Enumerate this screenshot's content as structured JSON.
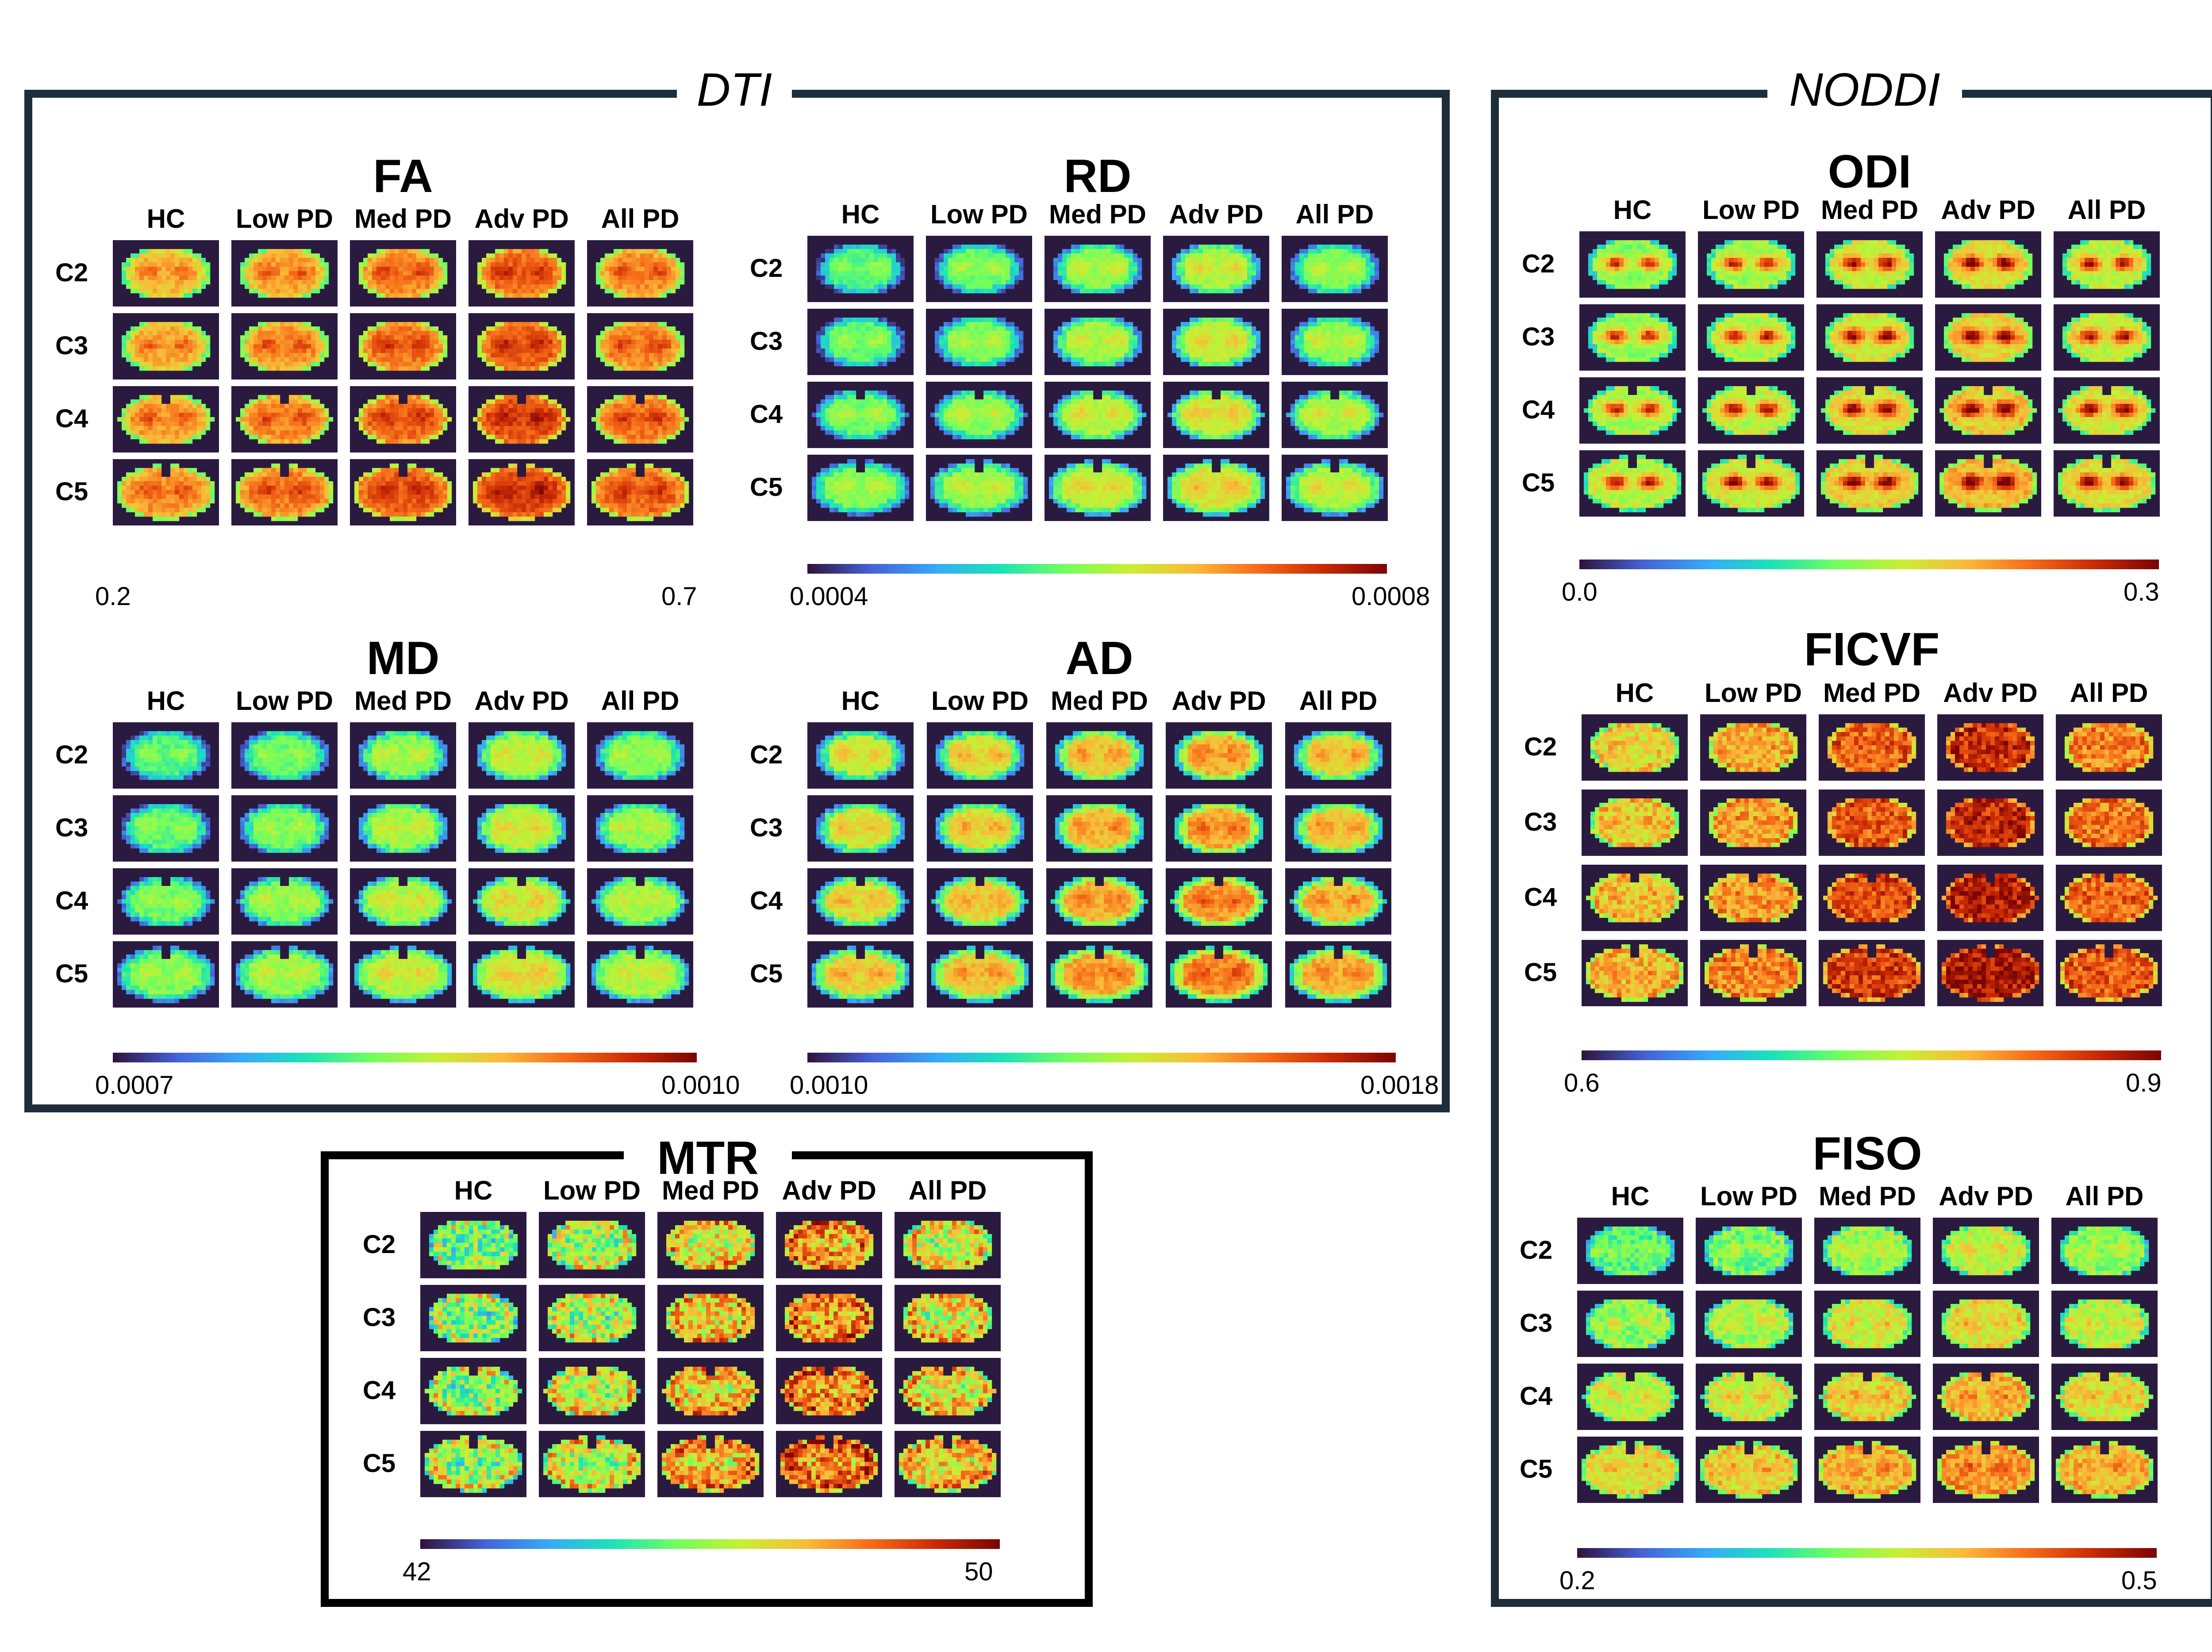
{
  "groups": {
    "dti": "DTI",
    "noddi": "NODDI",
    "mtr": "MTR"
  },
  "columns": [
    "HC",
    "Low PD",
    "Med PD",
    "Adv PD",
    "All PD"
  ],
  "rows": [
    "C2",
    "C3",
    "C4",
    "C5"
  ],
  "panels": [
    {
      "title": "FA",
      "min": "0.2",
      "max": "0.7",
      "show_bar": false
    },
    {
      "title": "RD",
      "min": "0.0004",
      "max": "0.0008",
      "show_bar": true
    },
    {
      "title": "MD",
      "min": "0.0007",
      "max": "0.0010",
      "show_bar": true
    },
    {
      "title": "AD",
      "min": "0.0010",
      "max": "0.0018",
      "show_bar": true
    },
    {
      "title": "",
      "min": "42",
      "max": "50",
      "show_bar": true
    },
    {
      "title": "ODI",
      "min": "0.0",
      "max": "0.3",
      "show_bar": true
    },
    {
      "title": "FICVF",
      "min": "0.6",
      "max": "0.9",
      "show_bar": true
    },
    {
      "title": "FISO",
      "min": "0.2",
      "max": "0.5",
      "show_bar": true
    }
  ],
  "colormap": [
    "#30123b",
    "#4662d7",
    "#36aaf9",
    "#1ae4b6",
    "#72fe5e",
    "#c8ef34",
    "#faba39",
    "#f66b19",
    "#ca2a04",
    "#7a0403"
  ],
  "colors": {
    "background": "#2b1a40",
    "frame_dti_noddi": "#1e2d3a",
    "frame_mtr": "#000000"
  }
}
